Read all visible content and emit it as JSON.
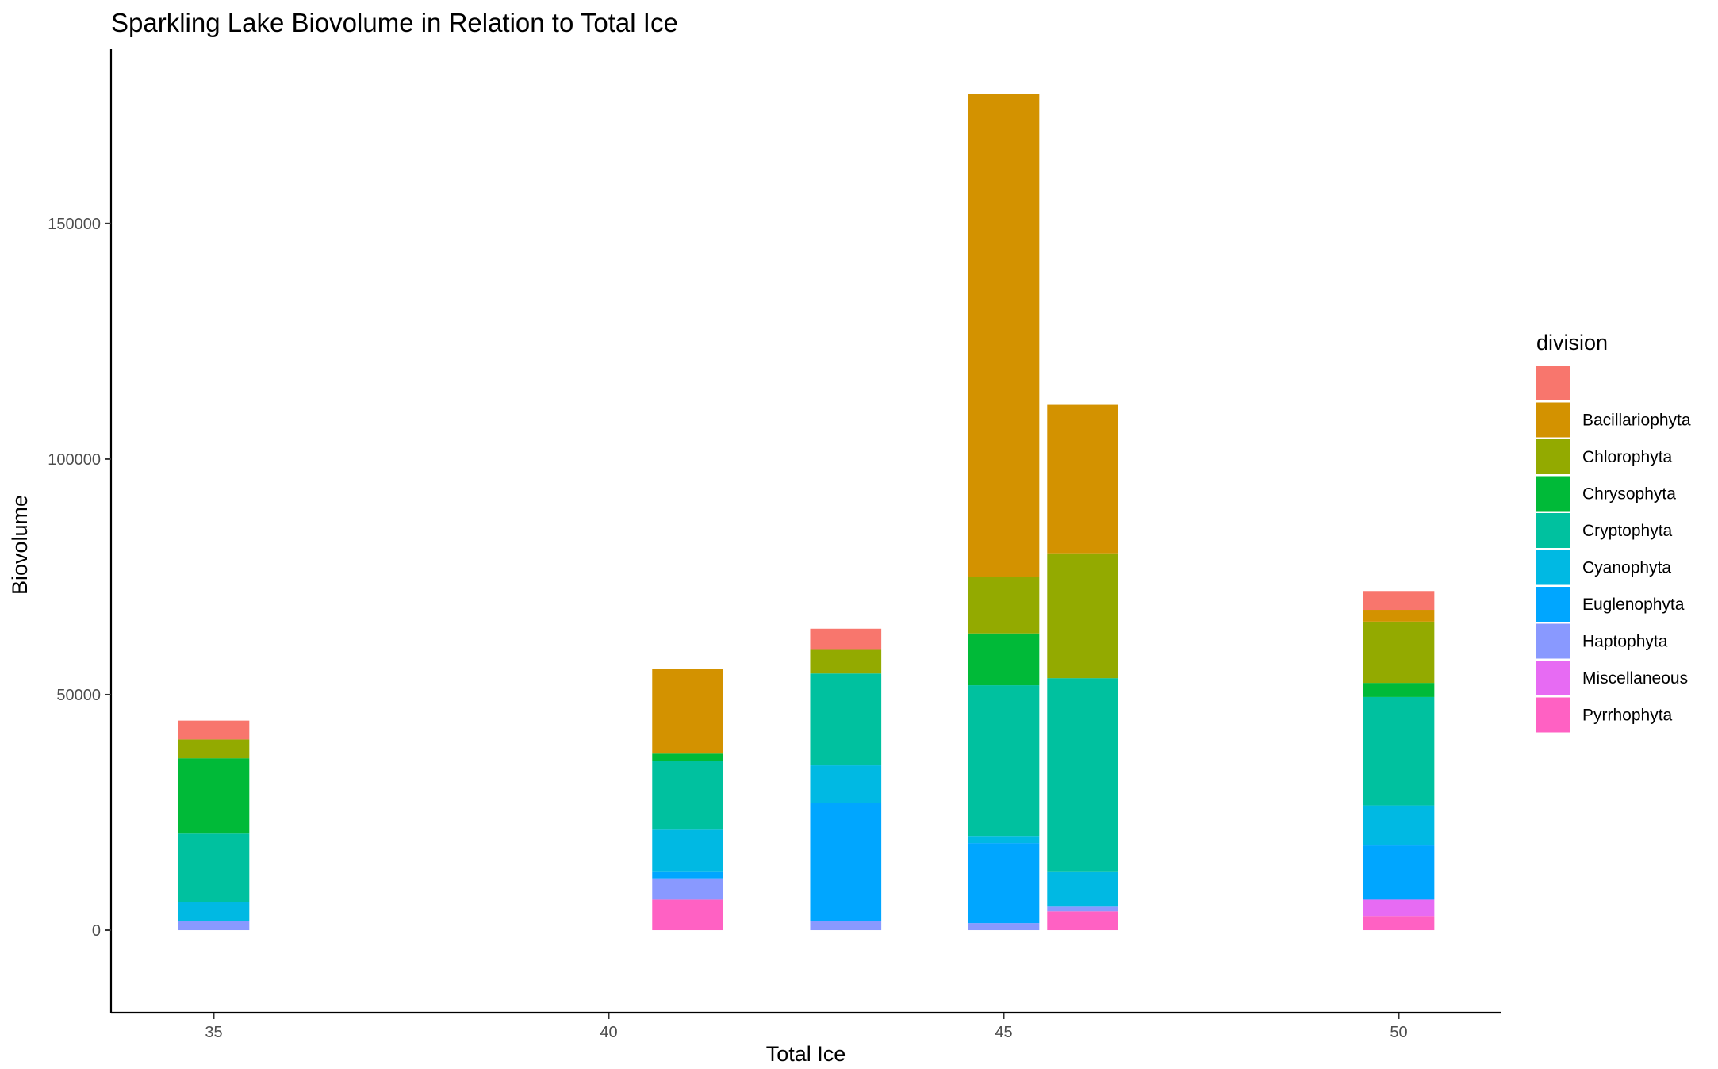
{
  "chart_data": {
    "type": "bar",
    "stacked": true,
    "title": "Sparkling Lake Biovolume in Relation to Total Ice",
    "xlabel": "Total Ice",
    "ylabel": "Biovolume",
    "xlim": [
      33.7,
      51.3
    ],
    "ylim": [
      -17500,
      187000
    ],
    "x_ticks": [
      35,
      40,
      45,
      50
    ],
    "y_ticks": [
      0,
      50000,
      100000,
      150000
    ],
    "y_tick_labels": [
      "0",
      "50000",
      "100000",
      "150000"
    ],
    "grid": false,
    "legend": {
      "title": "division",
      "placement": "right",
      "entries": [
        {
          "label": "",
          "color": "#F8766D"
        },
        {
          "label": "Bacillariophyta",
          "color": "#D39200"
        },
        {
          "label": "Chlorophyta",
          "color": "#93AA00"
        },
        {
          "label": "Chrysophyta",
          "color": "#00BA38"
        },
        {
          "label": "Cryptophyta",
          "color": "#00C19F"
        },
        {
          "label": "Cyanophyta",
          "color": "#00B9E3"
        },
        {
          "label": "Euglenophyta",
          "color": "#00A6FF"
        },
        {
          "label": "Haptophyta",
          "color": "#8999FF"
        },
        {
          "label": "Miscellaneous",
          "color": "#E76BF3"
        },
        {
          "label": "Pyrrhophyta",
          "color": "#FF61C3"
        }
      ]
    },
    "bar_width": 0.9,
    "stack_order_bottom_to_top": [
      "Pyrrhophyta",
      "Miscellaneous",
      "Haptophyta",
      "Euglenophyta",
      "Cyanophyta",
      "Cryptophyta",
      "Chrysophyta",
      "Chlorophyta",
      "Bacillariophyta",
      ""
    ],
    "bars": [
      {
        "x": 35,
        "values": {
          "Pyrrhophyta": 0,
          "Miscellaneous": 0,
          "Haptophyta": 2000,
          "Euglenophyta": 0,
          "Cyanophyta": 4000,
          "Cryptophyta": 14500,
          "Chrysophyta": 16000,
          "Chlorophyta": 4000,
          "Bacillariophyta": 0,
          "": 4000
        }
      },
      {
        "x": 41,
        "values": {
          "Pyrrhophyta": 6500,
          "Miscellaneous": 0,
          "Haptophyta": 4500,
          "Euglenophyta": 1500,
          "Cyanophyta": 9000,
          "Cryptophyta": 14500,
          "Chrysophyta": 1500,
          "Chlorophyta": 0,
          "Bacillariophyta": 18000,
          "": 0
        }
      },
      {
        "x": 43,
        "values": {
          "Pyrrhophyta": 0,
          "Miscellaneous": 0,
          "Haptophyta": 2000,
          "Euglenophyta": 25000,
          "Cyanophyta": 8000,
          "Cryptophyta": 19500,
          "Chrysophyta": 0,
          "Chlorophyta": 5000,
          "Bacillariophyta": 0,
          "": 4500
        }
      },
      {
        "x": 45,
        "values": {
          "Pyrrhophyta": 0,
          "Miscellaneous": 0,
          "Haptophyta": 1500,
          "Euglenophyta": 17000,
          "Cyanophyta": 1500,
          "Cryptophyta": 32000,
          "Chrysophyta": 11000,
          "Chlorophyta": 12000,
          "Bacillariophyta": 102500,
          "": 0
        }
      },
      {
        "x": 46,
        "values": {
          "Pyrrhophyta": 4000,
          "Miscellaneous": 0,
          "Haptophyta": 1000,
          "Euglenophyta": 0,
          "Cyanophyta": 7500,
          "Cryptophyta": 41000,
          "Chrysophyta": 0,
          "Chlorophyta": 26500,
          "Bacillariophyta": 31500,
          "": 0
        }
      },
      {
        "x": 50,
        "values": {
          "Pyrrhophyta": 3000,
          "Miscellaneous": 3500,
          "Haptophyta": 0,
          "Euglenophyta": 11500,
          "Cyanophyta": 8500,
          "Cryptophyta": 23000,
          "Chrysophyta": 3000,
          "Chlorophyta": 13000,
          "Bacillariophyta": 2500,
          "": 4000
        }
      }
    ]
  }
}
